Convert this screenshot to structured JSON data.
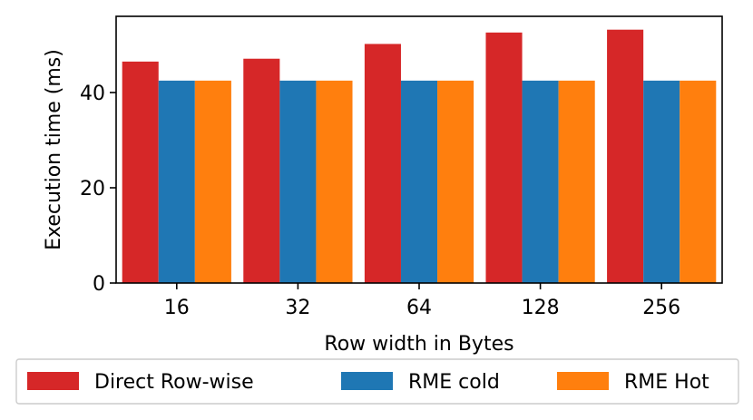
{
  "chart_data": {
    "type": "bar",
    "title": "",
    "xlabel": "Row width in Bytes",
    "ylabel": "Execution time (ms)",
    "categories": [
      "16",
      "32",
      "64",
      "128",
      "256"
    ],
    "ylim": [
      0,
      56
    ],
    "yticks": [
      0,
      20,
      40
    ],
    "grid": false,
    "legend_position": "bottom",
    "series": [
      {
        "name": "Direct Row-wise",
        "color": "#d62728",
        "values": [
          46.5,
          47.1,
          50.2,
          52.6,
          53.2
        ]
      },
      {
        "name": "RME cold",
        "color": "#1f77b4",
        "values": [
          42.5,
          42.5,
          42.5,
          42.5,
          42.5
        ]
      },
      {
        "name": "RME Hot",
        "color": "#ff7f0e",
        "values": [
          42.5,
          42.5,
          42.5,
          42.5,
          42.5
        ]
      }
    ]
  }
}
